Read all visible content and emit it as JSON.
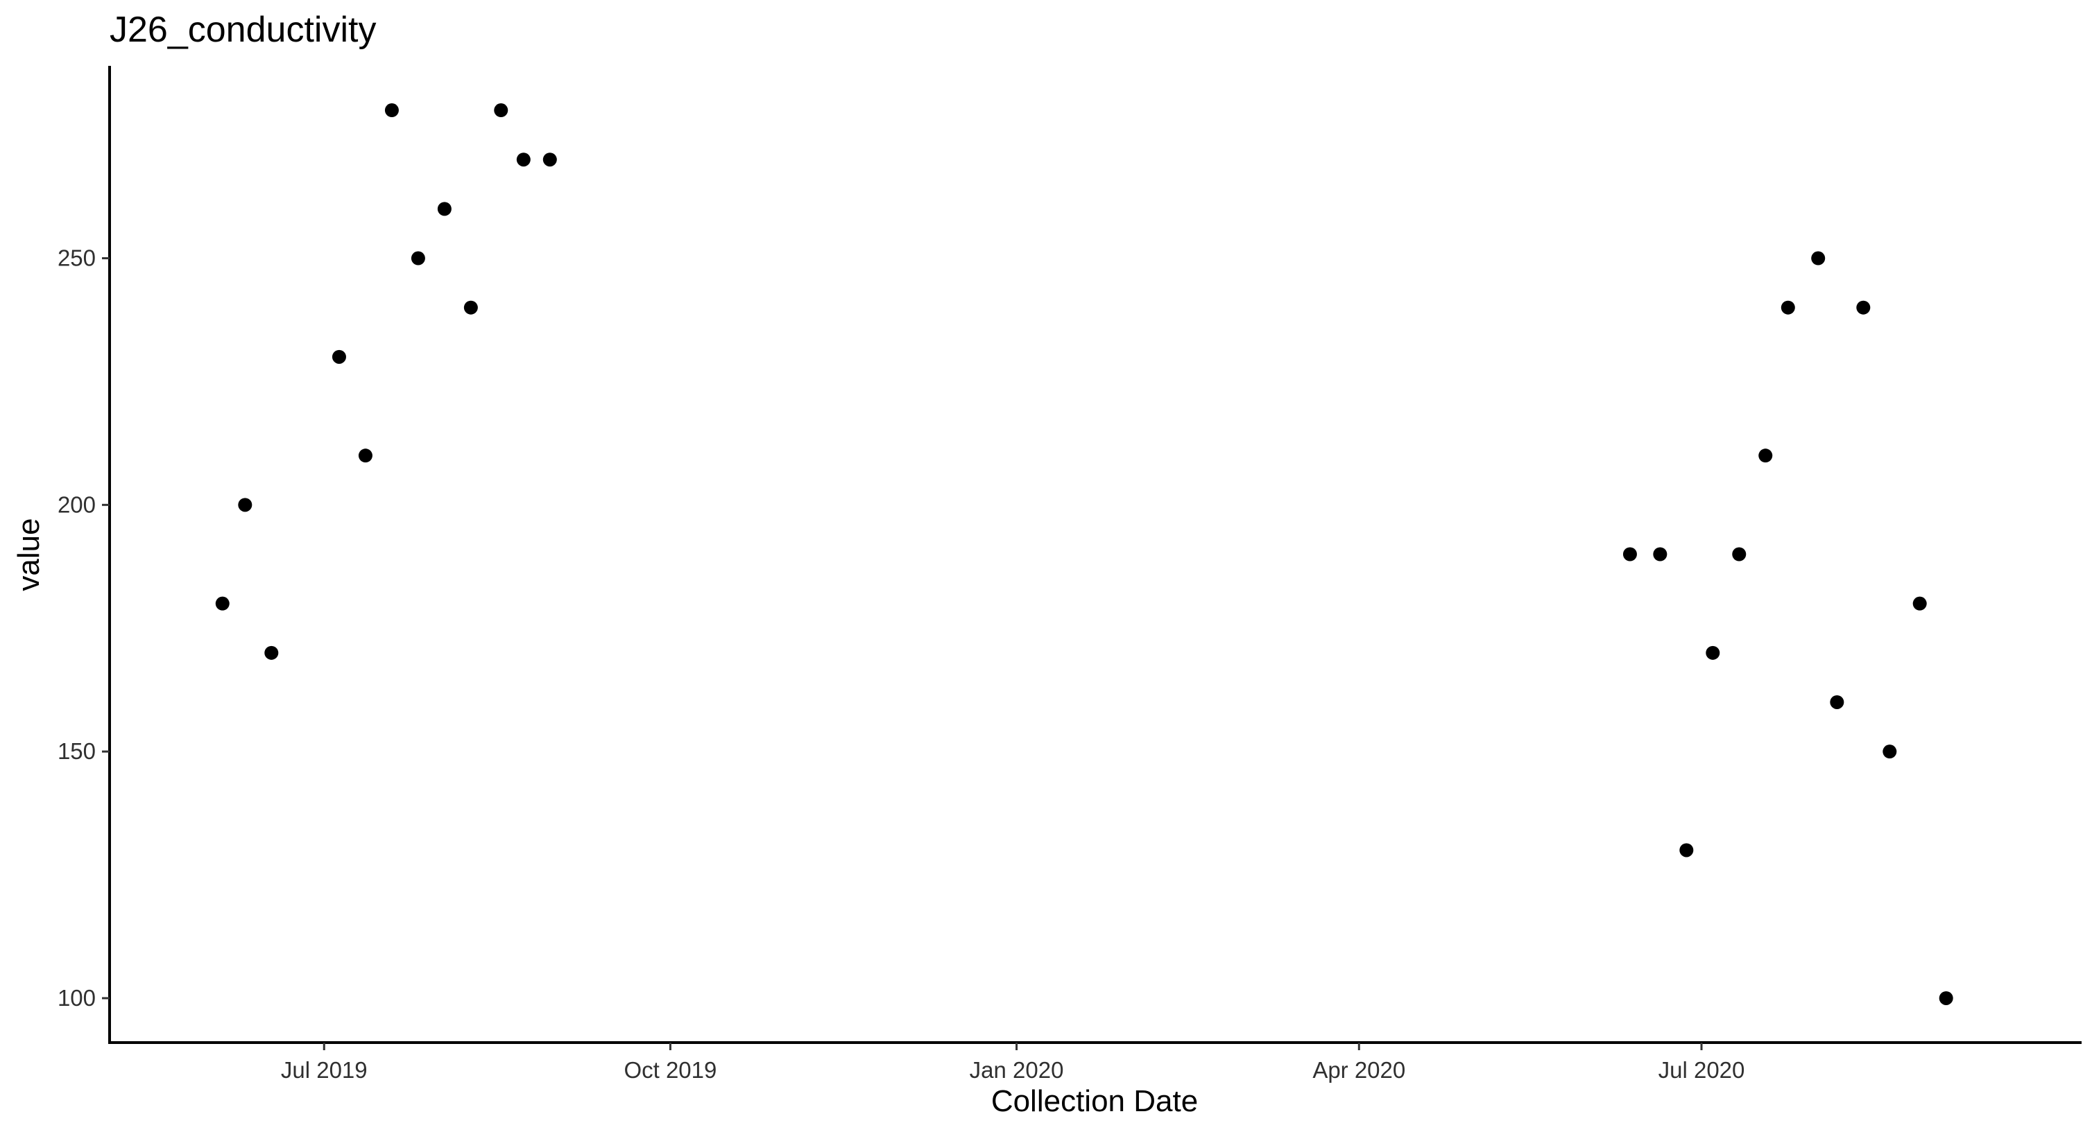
{
  "chart_data": {
    "type": "scatter",
    "title": "J26_conductivity",
    "xlabel": "Collection Date",
    "ylabel": "value",
    "x_axis_type": "date",
    "xlim": [
      "2019-05-05",
      "2020-10-10"
    ],
    "ylim": [
      91,
      289
    ],
    "x_ticks": [
      {
        "date": "2019-07-01",
        "label": "Jul 2019"
      },
      {
        "date": "2019-10-01",
        "label": "Oct 2019"
      },
      {
        "date": "2020-01-01",
        "label": "Jan 2020"
      },
      {
        "date": "2020-04-01",
        "label": "Apr 2020"
      },
      {
        "date": "2020-07-01",
        "label": "Jul 2020"
      }
    ],
    "y_ticks": [
      100,
      150,
      200,
      250
    ],
    "grid": false,
    "legend": "none",
    "point_color": "#000000",
    "points": [
      {
        "x": "2019-06-04",
        "y": 180
      },
      {
        "x": "2019-06-10",
        "y": 200
      },
      {
        "x": "2019-06-17",
        "y": 170
      },
      {
        "x": "2019-07-05",
        "y": 230
      },
      {
        "x": "2019-07-12",
        "y": 210
      },
      {
        "x": "2019-07-19",
        "y": 280
      },
      {
        "x": "2019-07-26",
        "y": 250
      },
      {
        "x": "2019-08-02",
        "y": 260
      },
      {
        "x": "2019-08-09",
        "y": 240
      },
      {
        "x": "2019-08-17",
        "y": 280
      },
      {
        "x": "2019-08-23",
        "y": 270
      },
      {
        "x": "2019-08-30",
        "y": 270
      },
      {
        "x": "2020-06-12",
        "y": 190
      },
      {
        "x": "2020-06-20",
        "y": 190
      },
      {
        "x": "2020-06-27",
        "y": 130
      },
      {
        "x": "2020-07-04",
        "y": 170
      },
      {
        "x": "2020-07-11",
        "y": 190
      },
      {
        "x": "2020-07-18",
        "y": 210
      },
      {
        "x": "2020-07-24",
        "y": 240
      },
      {
        "x": "2020-08-01",
        "y": 250
      },
      {
        "x": "2020-08-06",
        "y": 160
      },
      {
        "x": "2020-08-13",
        "y": 240
      },
      {
        "x": "2020-08-20",
        "y": 150
      },
      {
        "x": "2020-08-28",
        "y": 180
      },
      {
        "x": "2020-09-04",
        "y": 100
      }
    ]
  }
}
